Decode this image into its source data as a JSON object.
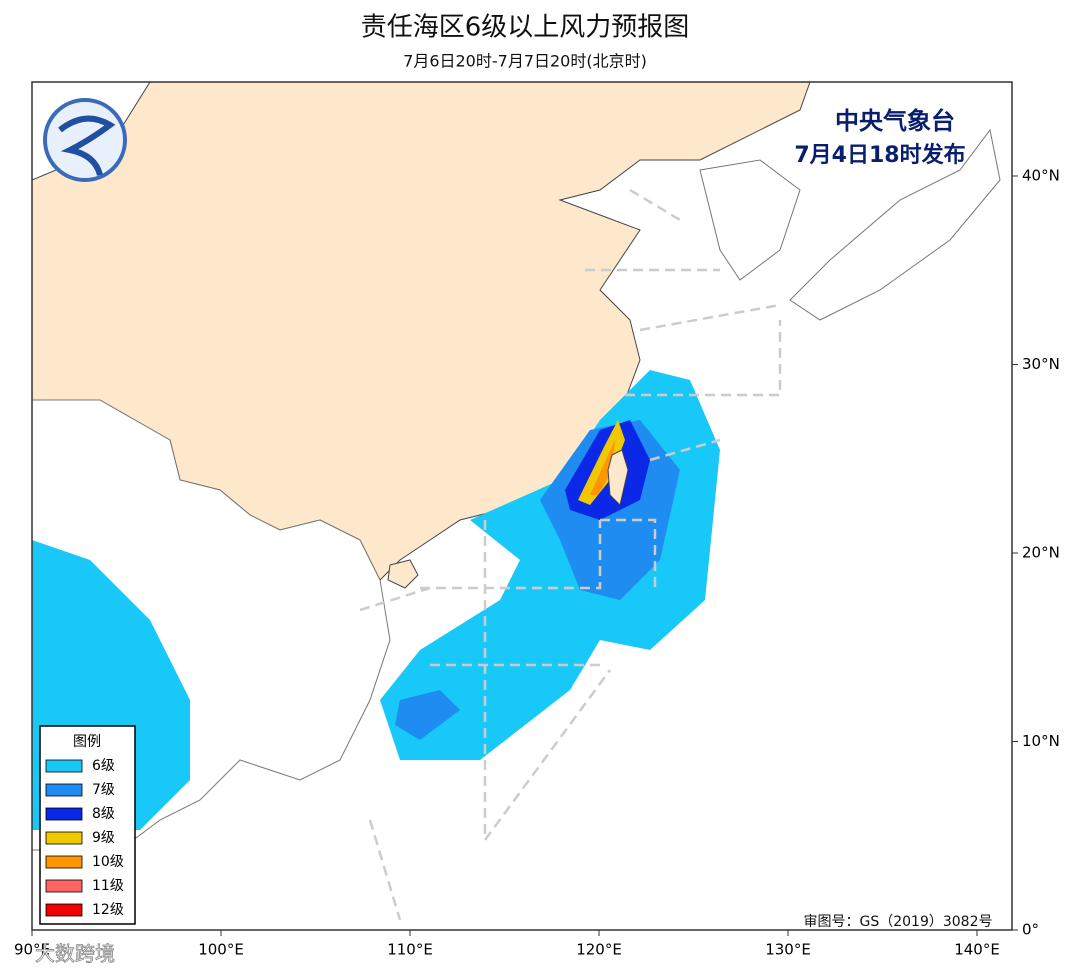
{
  "header": {
    "title": "责任海区6级以上风力预报图",
    "subtitle": "7月6日20时-7月7日20时(北京时)"
  },
  "issuer": {
    "agency": "中央气象台",
    "issued": "7月4日18时发布"
  },
  "axes": {
    "lon_ticks": [
      {
        "value": 90,
        "label": "90°E"
      },
      {
        "value": 100,
        "label": "100°E"
      },
      {
        "value": 110,
        "label": "110°E"
      },
      {
        "value": 120,
        "label": "120°E"
      },
      {
        "value": 130,
        "label": "130°E"
      },
      {
        "value": 140,
        "label": "140°E"
      }
    ],
    "lat_ticks": [
      {
        "value": 40,
        "label": "40°N"
      },
      {
        "value": 30,
        "label": "30°N"
      },
      {
        "value": 20,
        "label": "20°N"
      },
      {
        "value": 10,
        "label": "10°N"
      },
      {
        "value": 0,
        "label": "0°"
      }
    ]
  },
  "legend": {
    "title": "图例",
    "items": [
      {
        "label": "6级",
        "color": "#18c8f8"
      },
      {
        "label": "7级",
        "color": "#1e8cf0"
      },
      {
        "label": "8级",
        "color": "#0a28e6"
      },
      {
        "label": "9级",
        "color": "#f0c800"
      },
      {
        "label": "10级",
        "color": "#ff9600"
      },
      {
        "label": "11级",
        "color": "#ff6464"
      },
      {
        "label": "12级",
        "color": "#f00000"
      }
    ]
  },
  "footer": {
    "approval": "审图号：GS（2019）3082号",
    "watermark": "大数跨境"
  }
}
